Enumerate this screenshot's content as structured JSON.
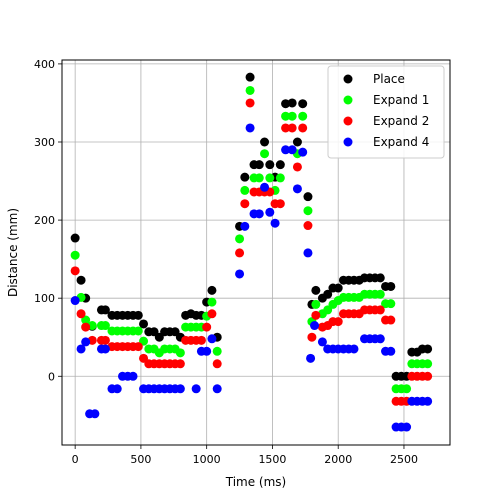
{
  "chart_data": {
    "type": "scatter",
    "xlabel": "Time (ms)",
    "ylabel": "Distance (mm)",
    "xlim": [
      -100,
      2850
    ],
    "ylim": [
      -88,
      405
    ],
    "xticks": [
      0,
      500,
      1000,
      1500,
      2000,
      2500
    ],
    "yticks": [
      0,
      100,
      200,
      300,
      400
    ],
    "xtick_labels": [
      "0",
      "500",
      "1000",
      "1500",
      "2000",
      "2500"
    ],
    "ytick_labels": [
      "0",
      "100",
      "200",
      "300",
      "400"
    ],
    "grid": true,
    "legend_position": "top-right",
    "series": [
      {
        "name": "Place",
        "color": "#000000",
        "points": [
          [
            0,
            177
          ],
          [
            45,
            123
          ],
          [
            80,
            100
          ],
          [
            130,
            64
          ],
          [
            200,
            85
          ],
          [
            230,
            85
          ],
          [
            280,
            78
          ],
          [
            320,
            78
          ],
          [
            360,
            78
          ],
          [
            400,
            78
          ],
          [
            440,
            78
          ],
          [
            480,
            78
          ],
          [
            520,
            67
          ],
          [
            560,
            57
          ],
          [
            600,
            57
          ],
          [
            640,
            50
          ],
          [
            680,
            57
          ],
          [
            720,
            57
          ],
          [
            760,
            57
          ],
          [
            800,
            50
          ],
          [
            840,
            78
          ],
          [
            880,
            80
          ],
          [
            920,
            78
          ],
          [
            960,
            78
          ],
          [
            1000,
            95
          ],
          [
            1040,
            110
          ],
          [
            1080,
            50
          ],
          [
            1250,
            192
          ],
          [
            1290,
            255
          ],
          [
            1330,
            383
          ],
          [
            1360,
            271
          ],
          [
            1400,
            271
          ],
          [
            1440,
            300
          ],
          [
            1480,
            271
          ],
          [
            1520,
            255
          ],
          [
            1560,
            271
          ],
          [
            1600,
            349
          ],
          [
            1650,
            350
          ],
          [
            1690,
            300
          ],
          [
            1730,
            349
          ],
          [
            1770,
            230
          ],
          [
            1800,
            92
          ],
          [
            1830,
            110
          ],
          [
            1880,
            100
          ],
          [
            1920,
            105
          ],
          [
            1960,
            113
          ],
          [
            2000,
            113
          ],
          [
            2040,
            123
          ],
          [
            2080,
            123
          ],
          [
            2120,
            123
          ],
          [
            2160,
            123
          ],
          [
            2200,
            126
          ],
          [
            2240,
            126
          ],
          [
            2280,
            126
          ],
          [
            2320,
            126
          ],
          [
            2360,
            115
          ],
          [
            2400,
            115
          ],
          [
            2440,
            0
          ],
          [
            2480,
            0
          ],
          [
            2520,
            0
          ],
          [
            2560,
            31
          ],
          [
            2600,
            31
          ],
          [
            2640,
            35
          ],
          [
            2680,
            35
          ]
        ]
      },
      {
        "name": "Expand 1",
        "color": "#00ff00",
        "points": [
          [
            0,
            155
          ],
          [
            45,
            101
          ],
          [
            80,
            72
          ],
          [
            130,
            65
          ],
          [
            200,
            65
          ],
          [
            230,
            65
          ],
          [
            280,
            58
          ],
          [
            320,
            58
          ],
          [
            360,
            58
          ],
          [
            400,
            58
          ],
          [
            440,
            58
          ],
          [
            480,
            58
          ],
          [
            520,
            45
          ],
          [
            560,
            35
          ],
          [
            600,
            35
          ],
          [
            640,
            30
          ],
          [
            680,
            35
          ],
          [
            720,
            35
          ],
          [
            760,
            35
          ],
          [
            800,
            30
          ],
          [
            840,
            63
          ],
          [
            880,
            63
          ],
          [
            920,
            63
          ],
          [
            960,
            63
          ],
          [
            1000,
            77
          ],
          [
            1040,
            95
          ],
          [
            1080,
            32
          ],
          [
            1250,
            176
          ],
          [
            1290,
            238
          ],
          [
            1330,
            366
          ],
          [
            1360,
            254
          ],
          [
            1400,
            254
          ],
          [
            1440,
            285
          ],
          [
            1480,
            254
          ],
          [
            1520,
            238
          ],
          [
            1560,
            254
          ],
          [
            1600,
            333
          ],
          [
            1650,
            333
          ],
          [
            1690,
            285
          ],
          [
            1730,
            333
          ],
          [
            1770,
            212
          ],
          [
            1800,
            70
          ],
          [
            1830,
            92
          ],
          [
            1880,
            80
          ],
          [
            1920,
            85
          ],
          [
            1960,
            92
          ],
          [
            2000,
            97
          ],
          [
            2040,
            101
          ],
          [
            2080,
            101
          ],
          [
            2120,
            101
          ],
          [
            2160,
            101
          ],
          [
            2200,
            105
          ],
          [
            2240,
            105
          ],
          [
            2280,
            105
          ],
          [
            2320,
            105
          ],
          [
            2360,
            93
          ],
          [
            2400,
            93
          ],
          [
            2440,
            -16
          ],
          [
            2480,
            -16
          ],
          [
            2520,
            -16
          ],
          [
            2560,
            16
          ],
          [
            2600,
            16
          ],
          [
            2640,
            16
          ],
          [
            2680,
            16
          ]
        ]
      },
      {
        "name": "Expand 2",
        "color": "#ff0000",
        "points": [
          [
            0,
            135
          ],
          [
            45,
            80
          ],
          [
            80,
            63
          ],
          [
            130,
            46
          ],
          [
            200,
            46
          ],
          [
            230,
            46
          ],
          [
            280,
            38
          ],
          [
            320,
            38
          ],
          [
            360,
            38
          ],
          [
            400,
            38
          ],
          [
            440,
            38
          ],
          [
            480,
            38
          ],
          [
            520,
            23
          ],
          [
            560,
            16
          ],
          [
            600,
            16
          ],
          [
            640,
            16
          ],
          [
            680,
            16
          ],
          [
            720,
            16
          ],
          [
            760,
            16
          ],
          [
            800,
            16
          ],
          [
            840,
            46
          ],
          [
            880,
            46
          ],
          [
            920,
            46
          ],
          [
            960,
            46
          ],
          [
            1000,
            63
          ],
          [
            1040,
            80
          ],
          [
            1080,
            16
          ],
          [
            1250,
            158
          ],
          [
            1290,
            221
          ],
          [
            1330,
            350
          ],
          [
            1360,
            236
          ],
          [
            1400,
            236
          ],
          [
            1440,
            236
          ],
          [
            1480,
            236
          ],
          [
            1520,
            221
          ],
          [
            1560,
            221
          ],
          [
            1600,
            318
          ],
          [
            1650,
            318
          ],
          [
            1690,
            268
          ],
          [
            1730,
            318
          ],
          [
            1770,
            193
          ],
          [
            1800,
            50
          ],
          [
            1830,
            78
          ],
          [
            1880,
            63
          ],
          [
            1920,
            65
          ],
          [
            1960,
            70
          ],
          [
            2000,
            70
          ],
          [
            2040,
            80
          ],
          [
            2080,
            80
          ],
          [
            2120,
            80
          ],
          [
            2160,
            80
          ],
          [
            2200,
            85
          ],
          [
            2240,
            85
          ],
          [
            2280,
            85
          ],
          [
            2320,
            85
          ],
          [
            2360,
            72
          ],
          [
            2400,
            72
          ],
          [
            2440,
            -32
          ],
          [
            2480,
            -32
          ],
          [
            2520,
            -32
          ],
          [
            2560,
            0
          ],
          [
            2600,
            0
          ],
          [
            2640,
            0
          ],
          [
            2680,
            0
          ]
        ]
      },
      {
        "name": "Expand 4",
        "color": "#0000ff",
        "points": [
          [
            0,
            97
          ],
          [
            45,
            35
          ],
          [
            80,
            44
          ],
          [
            110,
            -48
          ],
          [
            150,
            -48
          ],
          [
            200,
            35
          ],
          [
            230,
            35
          ],
          [
            280,
            -16
          ],
          [
            320,
            -16
          ],
          [
            360,
            0
          ],
          [
            400,
            0
          ],
          [
            440,
            0
          ],
          [
            520,
            -16
          ],
          [
            560,
            -16
          ],
          [
            600,
            -16
          ],
          [
            640,
            -16
          ],
          [
            680,
            -16
          ],
          [
            720,
            -16
          ],
          [
            760,
            -16
          ],
          [
            800,
            -16
          ],
          [
            920,
            -16
          ],
          [
            960,
            32
          ],
          [
            1000,
            32
          ],
          [
            1040,
            48
          ],
          [
            1080,
            -16
          ],
          [
            1250,
            131
          ],
          [
            1290,
            192
          ],
          [
            1330,
            318
          ],
          [
            1360,
            208
          ],
          [
            1400,
            208
          ],
          [
            1440,
            242
          ],
          [
            1480,
            210
          ],
          [
            1520,
            196
          ],
          [
            1600,
            290
          ],
          [
            1650,
            290
          ],
          [
            1690,
            240
          ],
          [
            1730,
            287
          ],
          [
            1770,
            158
          ],
          [
            1790,
            23
          ],
          [
            1820,
            65
          ],
          [
            1880,
            44
          ],
          [
            1920,
            35
          ],
          [
            1960,
            35
          ],
          [
            2000,
            35
          ],
          [
            2040,
            35
          ],
          [
            2080,
            35
          ],
          [
            2120,
            35
          ],
          [
            2200,
            48
          ],
          [
            2240,
            48
          ],
          [
            2280,
            48
          ],
          [
            2320,
            48
          ],
          [
            2360,
            32
          ],
          [
            2400,
            32
          ],
          [
            2440,
            -65
          ],
          [
            2480,
            -65
          ],
          [
            2520,
            -65
          ],
          [
            2560,
            -32
          ],
          [
            2600,
            -32
          ],
          [
            2640,
            -32
          ],
          [
            2680,
            -32
          ]
        ]
      }
    ]
  }
}
